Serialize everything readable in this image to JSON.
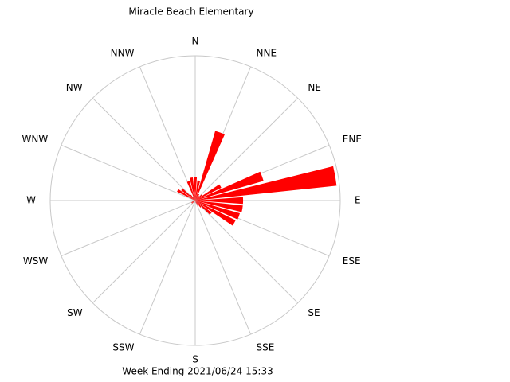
{
  "chart_data": {
    "type": "rose",
    "title": "Miracle Beach Elementary",
    "footer": "Week Ending 2021/06/24 15:33",
    "x": [
      0,
      10,
      20,
      30,
      40,
      50,
      60,
      70,
      80,
      90,
      100,
      110,
      120,
      130,
      140,
      150,
      160,
      170,
      180,
      190,
      200,
      210,
      220,
      230,
      240,
      250,
      260,
      270,
      280,
      290,
      300,
      310,
      320,
      330,
      340,
      350
    ],
    "values": [
      16,
      14,
      50,
      5,
      4,
      6,
      20,
      49,
      98,
      33,
      33,
      32,
      31,
      14,
      6,
      3,
      2,
      0,
      0,
      0,
      0,
      0,
      0,
      3,
      3,
      2,
      0,
      0,
      0,
      0,
      14,
      12,
      5,
      3,
      14,
      16
    ],
    "color": "#ff0000",
    "xlim": [
      0,
      360
    ],
    "xticks": [
      {
        "value": 0,
        "label": "N"
      },
      {
        "value": 22.5,
        "label": "NNE"
      },
      {
        "value": 45,
        "label": "NE"
      },
      {
        "value": 67.5,
        "label": "ENE"
      },
      {
        "value": 90,
        "label": "E"
      },
      {
        "value": 112.5,
        "label": "ESE"
      },
      {
        "value": 135,
        "label": "SE"
      },
      {
        "value": 157.5,
        "label": "SSE"
      },
      {
        "value": 180,
        "label": "S"
      },
      {
        "value": 202.5,
        "label": "SSW"
      },
      {
        "value": 225,
        "label": "SW"
      },
      {
        "value": 247.5,
        "label": "WSW"
      },
      {
        "value": 270,
        "label": "W"
      },
      {
        "value": 292.5,
        "label": "WNW"
      },
      {
        "value": 315,
        "label": "NW"
      },
      {
        "value": 337.5,
        "label": "NNW"
      }
    ],
    "rlim": [
      0,
      100
    ]
  }
}
